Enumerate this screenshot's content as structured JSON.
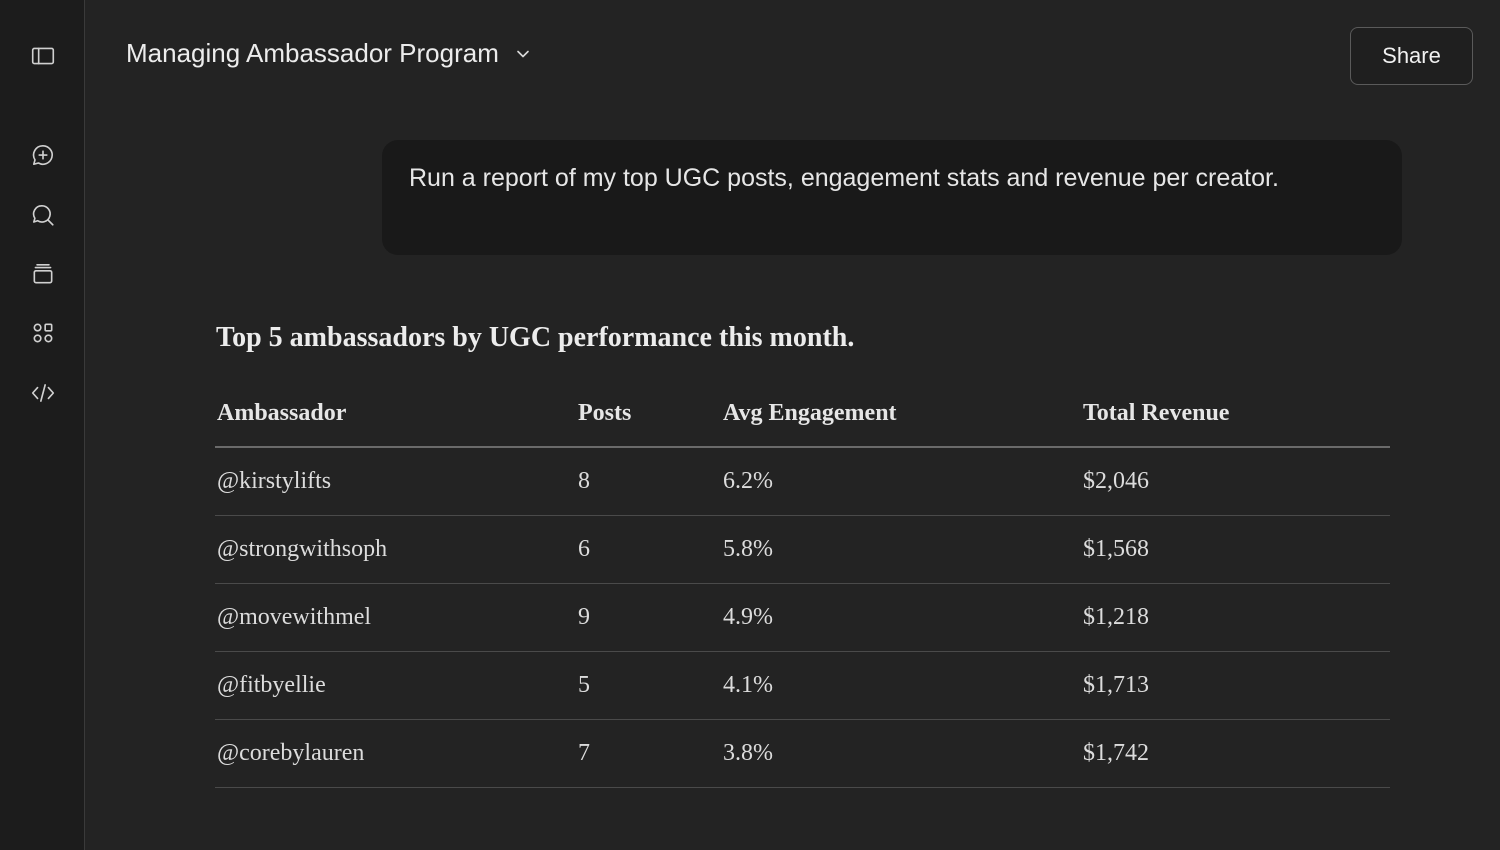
{
  "sidebar": {
    "icons": [
      "sidebar-toggle-icon",
      "new-chat-icon",
      "search-chat-icon",
      "archive-icon",
      "apps-grid-icon",
      "code-icon"
    ]
  },
  "header": {
    "title": "Managing Ambassador Program",
    "share_label": "Share"
  },
  "user_message": "Run a report of my top UGC posts, engagement stats and revenue per creator.",
  "response": {
    "heading": "Top 5 ambassadors by UGC performance this month.",
    "table": {
      "columns": [
        "Ambassador",
        "Posts",
        "Avg Engagement",
        "Total Revenue"
      ],
      "rows": [
        [
          "@kirstylifts",
          "8",
          "6.2%",
          "$2,046"
        ],
        [
          "@strongwithsoph",
          "6",
          "5.8%",
          "$1,568"
        ],
        [
          "@movewithmel",
          "9",
          "4.9%",
          "$1,218"
        ],
        [
          "@fitbyellie",
          "5",
          "4.1%",
          "$1,713"
        ],
        [
          "@corebylauren",
          "7",
          "3.8%",
          "$1,742"
        ]
      ]
    }
  },
  "colors": {
    "background": "#232323",
    "sidebar": "#1c1c1c",
    "message_bubble": "#191919",
    "text": "#e8e8e8"
  }
}
